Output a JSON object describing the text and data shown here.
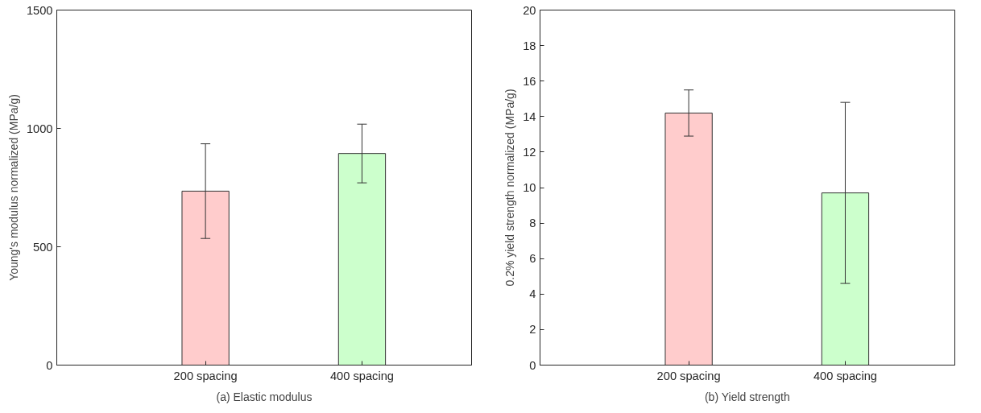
{
  "chart_data": [
    {
      "type": "bar",
      "categories": [
        "200 spacing",
        "400 spacing"
      ],
      "values": [
        735,
        894
      ],
      "errors": [
        200,
        124
      ],
      "colors": [
        "#ffcccc",
        "#ccffcc"
      ],
      "ylabel": "Young's modulus normalized (MPa/g)",
      "ylim": [
        0,
        1500
      ],
      "yticks": [
        0,
        500,
        1000,
        1500
      ],
      "grid": false,
      "annotations": [
        "(a) Elastic modulus"
      ]
    },
    {
      "type": "bar",
      "categories": [
        "200 spacing",
        "400 spacing"
      ],
      "values": [
        14.2,
        9.7
      ],
      "errors": [
        1.3,
        5.1
      ],
      "colors": [
        "#ffcccc",
        "#ccffcc"
      ],
      "ylabel": "0.2% yield strength normalized (MPa/g)",
      "ylim": [
        0,
        20
      ],
      "yticks": [
        0,
        2,
        4,
        6,
        8,
        10,
        12,
        14,
        16,
        18,
        20
      ],
      "grid": false,
      "annotations": [
        "(b) Yield strength"
      ]
    }
  ]
}
